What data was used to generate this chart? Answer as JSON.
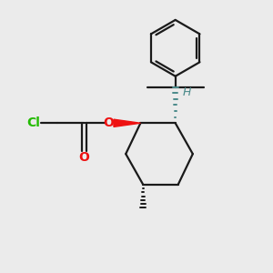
{
  "background_color": "#ebebeb",
  "bond_color": "#1a1a1a",
  "cl_color": "#22bb00",
  "o_color": "#ee1111",
  "h_color": "#4a8a8a",
  "figsize": [
    3.0,
    3.0
  ],
  "dpi": 100,
  "xlim": [
    0,
    10
  ],
  "ylim": [
    0,
    10
  ]
}
